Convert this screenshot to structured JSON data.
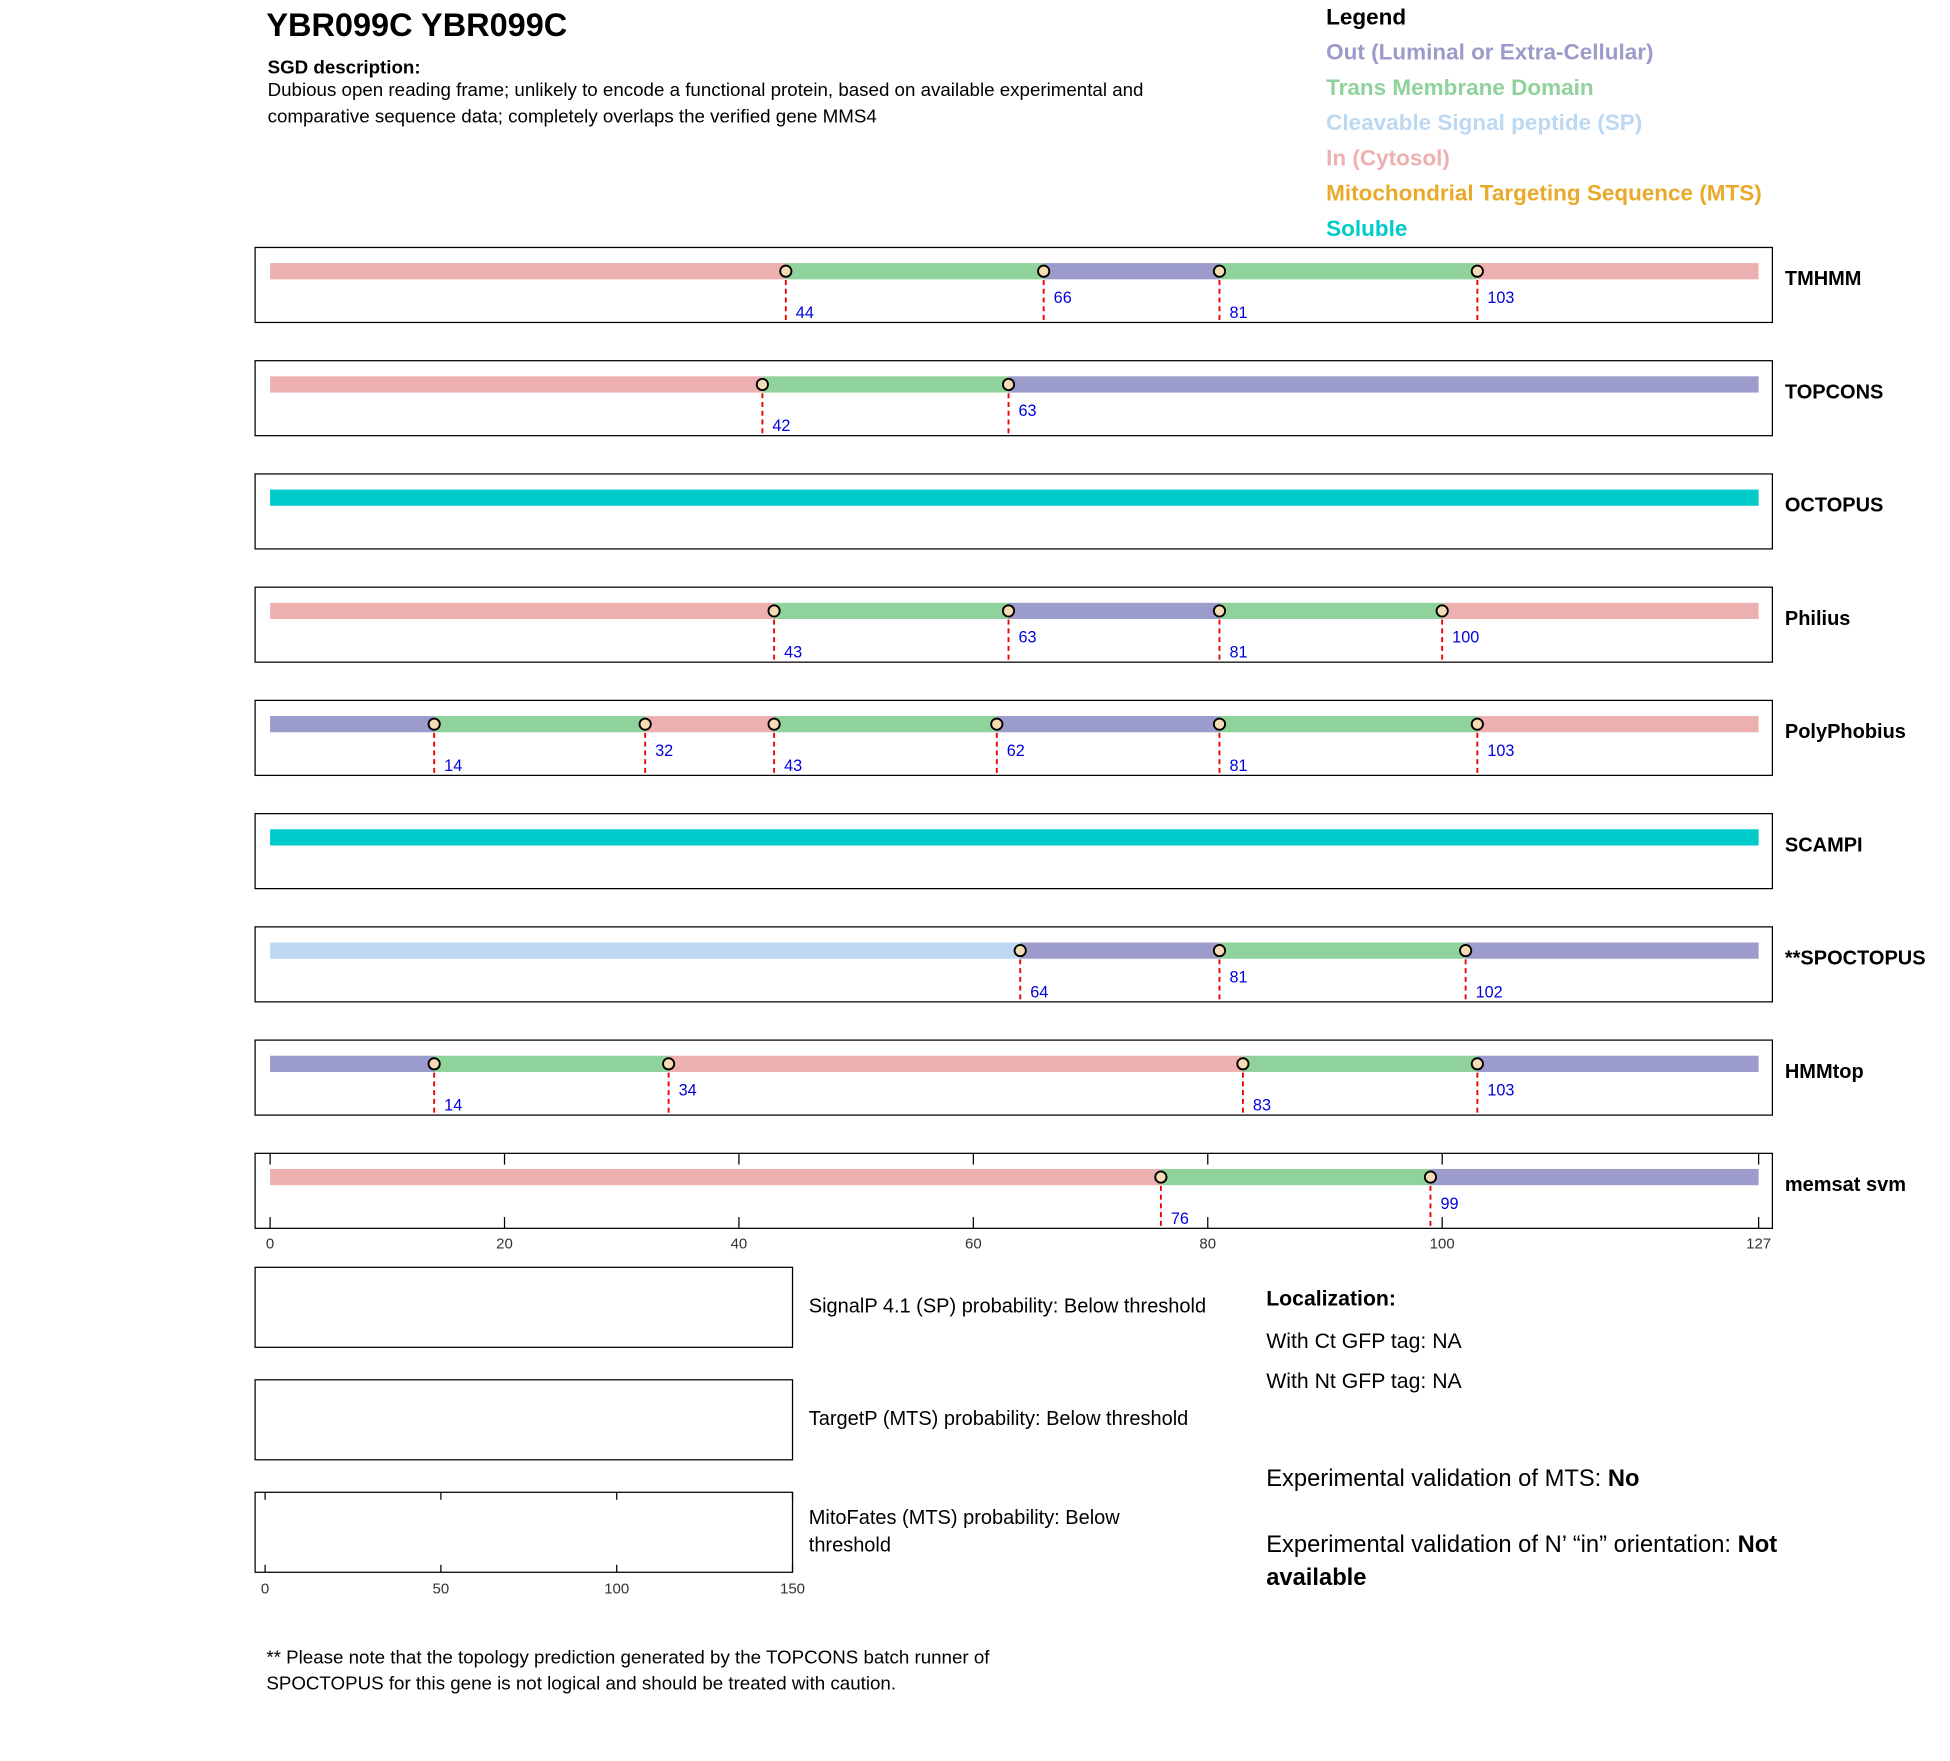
{
  "header": {
    "title": "YBR099C  YBR099C",
    "sgd_label": "SGD description:",
    "sgd_lines": [
      "Dubious open reading frame; unlikely to encode a functional protein, based on available experimental and",
      "comparative sequence data; completely overlaps the verified gene MMS4"
    ]
  },
  "legend": {
    "title": "Legend",
    "items": [
      {
        "name": "Out (Luminal or Extra-Cellular)",
        "color": "#9b9bcc"
      },
      {
        "name": "Trans Membrane Domain",
        "color": "#8fd29b"
      },
      {
        "name": "Cleavable Signal peptide (SP)",
        "color": "#bcd8f2"
      },
      {
        "name": "In (Cytosol)",
        "color": "#edb0b0"
      },
      {
        "name": "Mitochondrial Targeting Sequence (MTS)",
        "color": "#e9a92b"
      },
      {
        "name": "Soluble",
        "color": "#00cbcb"
      }
    ]
  },
  "chart_data": [
    {
      "type": "topology",
      "xlim": [
        0,
        127
      ],
      "xticks": [
        0,
        20,
        40,
        60,
        80,
        100,
        127
      ],
      "tracks": [
        {
          "name": "TMHMM",
          "boundaries": [
            44,
            66,
            81,
            103
          ],
          "colors": [
            "#edb0b0",
            "#8fd29b",
            "#9b9bcc",
            "#8fd29b",
            "#edb0b0"
          ]
        },
        {
          "name": "TOPCONS",
          "boundaries": [
            42,
            63
          ],
          "colors": [
            "#edb0b0",
            "#8fd29b",
            "#9b9bcc"
          ]
        },
        {
          "name": "OCTOPUS",
          "boundaries": [],
          "colors": [
            "#00cbcb"
          ]
        },
        {
          "name": "Philius",
          "boundaries": [
            43,
            63,
            81,
            100
          ],
          "colors": [
            "#edb0b0",
            "#8fd29b",
            "#9b9bcc",
            "#8fd29b",
            "#edb0b0"
          ]
        },
        {
          "name": "PolyPhobius",
          "boundaries": [
            14,
            32,
            43,
            62,
            81,
            103
          ],
          "colors": [
            "#9b9bcc",
            "#8fd29b",
            "#edb0b0",
            "#8fd29b",
            "#9b9bcc",
            "#8fd29b",
            "#edb0b0"
          ]
        },
        {
          "name": "SCAMPI",
          "boundaries": [],
          "colors": [
            "#00cbcb"
          ]
        },
        {
          "name": "**SPOCTOPUS",
          "boundaries": [
            64,
            81,
            102
          ],
          "colors": [
            "#bcd8f2",
            "#9b9bcc",
            "#8fd29b",
            "#9b9bcc"
          ]
        },
        {
          "name": "HMMtop",
          "boundaries": [
            14,
            34,
            83,
            103
          ],
          "colors": [
            "#9b9bcc",
            "#8fd29b",
            "#edb0b0",
            "#8fd29b",
            "#9b9bcc"
          ]
        },
        {
          "name": "memsat svm",
          "boundaries": [
            76,
            99
          ],
          "colors": [
            "#edb0b0",
            "#8fd29b",
            "#9b9bcc"
          ]
        }
      ]
    },
    {
      "type": "probability",
      "xlim": [
        0,
        150
      ],
      "xticks": [
        0,
        50,
        100,
        150
      ],
      "panels": [
        {
          "lines": [
            "SignalP 4.1 (SP) probability: Below threshold"
          ]
        },
        {
          "lines": [
            "TargetP (MTS) probability: Below threshold"
          ]
        },
        {
          "lines": [
            "MitoFates (MTS) probability: Below",
            "threshold"
          ]
        }
      ]
    }
  ],
  "localization": {
    "title": "Localization:",
    "ct": "With Ct GFP tag: NA",
    "nt": "With Nt GFP tag: NA",
    "mts_label": "Experimental validation of MTS: ",
    "mts_value": "No",
    "orientation_label": "Experimental validation of N’ “in” orientation: ",
    "orientation_value_lines": [
      "Not",
      "available"
    ]
  },
  "footnote": [
    "** Please note that the topology prediction generated by the TOPCONS batch runner of",
    "SPOCTOPUS for this gene is not logical and should be treated with caution."
  ]
}
